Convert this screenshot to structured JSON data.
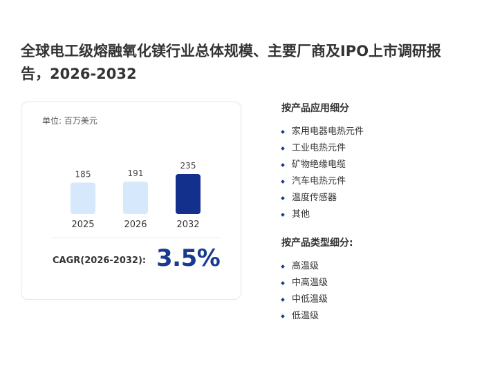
{
  "title": "全球电工级熔融氧化镁行业总体规模、主要厂商及IPO上市调研报告，2026-2032",
  "card": {
    "unit_label": "单位: 百万美元",
    "cagr_label": "CAGR(2026-2032):",
    "cagr_value": "3.5%"
  },
  "chart_data": {
    "type": "bar",
    "categories": [
      "2025",
      "2026",
      "2032"
    ],
    "values": [
      185,
      191,
      235
    ],
    "value_labels": [
      "185",
      "191",
      "235"
    ],
    "colors": [
      "#d6e8fb",
      "#d6e8fb",
      "#12308c"
    ],
    "ylim": [
      0,
      235
    ]
  },
  "segments": {
    "application": {
      "heading": "按产品应用细分",
      "items": [
        "家用电器电热元件",
        "工业电热元件",
        "矿物绝缘电缆",
        "汽车电热元件",
        "温度传感器",
        "其他"
      ]
    },
    "type": {
      "heading": "按产品类型细分:",
      "items": [
        "高温级",
        "中高温级",
        "中低温级",
        "低温级"
      ]
    }
  }
}
